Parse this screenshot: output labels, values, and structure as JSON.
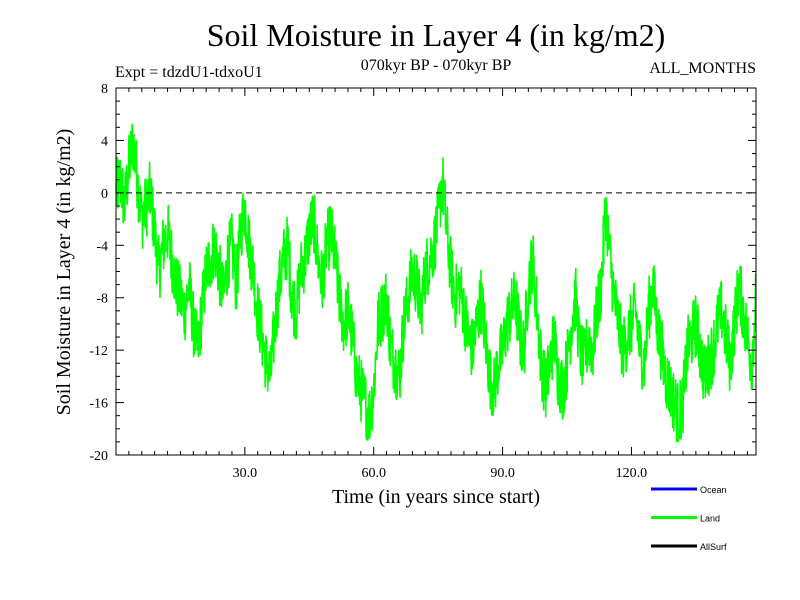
{
  "chart_data": {
    "type": "line",
    "title": "Soil Moisture in Layer 4 (in kg/m2)",
    "subtitle_left": "Expt = tdzdU1-tdxoU1",
    "subtitle_center": "070kyr BP - 070kyr BP",
    "subtitle_right": "ALL_MONTHS",
    "xlabel": "Time (in years since start)",
    "ylabel": "Soil Moisture in Layer 4 (in kg/m2)",
    "xlim": [
      0,
      149
    ],
    "ylim": [
      -20,
      8
    ],
    "x_ticks": [
      30,
      60,
      90,
      120
    ],
    "x_tick_labels": [
      "30.0",
      "60.0",
      "90.0",
      "120.0"
    ],
    "y_ticks": [
      8,
      4,
      0,
      -4,
      -8,
      -12,
      -16,
      -20
    ],
    "y_tick_labels": [
      "8",
      "4",
      "0",
      "-4",
      "-8",
      "-12",
      "-16",
      "-20"
    ],
    "reference_line": {
      "y": 0,
      "style": "dashed"
    },
    "legend": [
      {
        "name": "Ocean",
        "color": "#0000ff"
      },
      {
        "name": "Land",
        "color": "#00ff00"
      },
      {
        "name": "AllSurf",
        "color": "#000000"
      }
    ],
    "series": [
      {
        "name": "Land",
        "color": "#00ff00",
        "x_start": 0,
        "x_end": 149,
        "anchor_x": [
          0,
          1,
          2,
          3,
          4,
          5,
          6,
          7,
          8,
          9,
          10,
          11,
          12,
          13,
          14,
          15,
          16,
          17,
          18,
          19,
          20,
          21,
          22,
          23,
          24,
          25,
          26,
          27,
          28,
          29,
          30,
          31,
          32,
          33,
          34,
          35,
          36,
          37,
          38,
          39,
          40,
          41,
          42,
          43,
          44,
          45,
          46,
          47,
          48,
          49,
          50,
          51,
          52,
          53,
          54,
          55,
          56,
          57,
          58,
          59,
          60,
          61,
          62,
          63,
          64,
          65,
          66,
          67,
          68,
          69,
          70,
          71,
          72,
          73,
          74,
          75,
          76,
          77,
          78,
          79,
          80,
          81,
          82,
          83,
          84,
          85,
          86,
          87,
          88,
          89,
          90,
          91,
          92,
          93,
          94,
          95,
          96,
          97,
          98,
          99,
          100,
          101,
          102,
          103,
          104,
          105,
          106,
          107,
          108,
          109,
          110,
          111,
          112,
          113,
          114,
          115,
          116,
          117,
          118,
          119,
          120,
          121,
          122,
          123,
          124,
          125,
          126,
          127,
          128,
          129,
          130,
          131,
          132,
          133,
          134,
          135,
          136,
          137,
          138,
          139,
          140,
          141,
          142,
          143,
          144,
          145,
          146,
          147,
          148,
          149
        ],
        "anchor_y": [
          0,
          1,
          -1,
          2,
          4,
          1,
          -2,
          -1,
          0,
          -3,
          -6,
          -4,
          -3,
          -5,
          -7,
          -8,
          -9,
          -7,
          -10,
          -12,
          -9,
          -6,
          -5,
          -4,
          -6,
          -8,
          -5,
          -4,
          -7,
          -3,
          -1,
          -4,
          -6,
          -9,
          -11,
          -13,
          -14,
          -10,
          -7,
          -5,
          -4,
          -8,
          -9,
          -6,
          -5,
          -3,
          -2,
          -5,
          -7,
          -4,
          -3,
          -5,
          -8,
          -10,
          -9,
          -11,
          -14,
          -15,
          -16,
          -17,
          -15,
          -10,
          -9,
          -8,
          -12,
          -13,
          -14,
          -10,
          -8,
          -6,
          -7,
          -9,
          -6,
          -5,
          -4,
          -2,
          1,
          -3,
          -6,
          -8,
          -7,
          -9,
          -11,
          -12,
          -10,
          -8,
          -11,
          -14,
          -15,
          -13,
          -12,
          -10,
          -9,
          -8,
          -11,
          -12,
          -7,
          -5,
          -9,
          -13,
          -15,
          -13,
          -11,
          -14,
          -15,
          -13,
          -10,
          -8,
          -12,
          -13,
          -11,
          -12,
          -9,
          -7,
          -1,
          -5,
          -8,
          -10,
          -12,
          -11,
          -10,
          -9,
          -12,
          -13,
          -9,
          -7,
          -10,
          -12,
          -14,
          -15,
          -16,
          -17,
          -16,
          -12,
          -11,
          -10,
          -12,
          -14,
          -13,
          -12,
          -10,
          -9,
          -11,
          -13,
          -10,
          -7,
          -9,
          -11,
          -13,
          -8
        ],
        "sample_step": 0.0833,
        "note": "Monthly time series; anchor values estimated from the figure at 1-year intervals, monthly points generated between anchors."
      }
    ]
  }
}
